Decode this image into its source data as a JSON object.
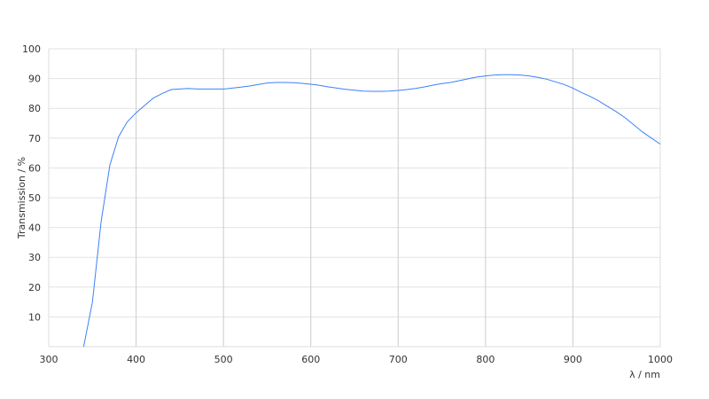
{
  "chart_data": {
    "type": "line",
    "title": "",
    "xlabel": "λ / nm",
    "ylabel": "Transmission / %",
    "xlim": [
      300,
      1000
    ],
    "ylim": [
      0,
      100
    ],
    "xticks": [
      300,
      400,
      500,
      600,
      700,
      800,
      900,
      1000
    ],
    "yticks": [
      10,
      20,
      30,
      40,
      50,
      60,
      70,
      80,
      90,
      100
    ],
    "grid": true,
    "line_color": "#3b82f6",
    "series": [
      {
        "x": [
          340,
          350,
          360,
          370,
          380,
          390,
          400,
          410,
          420,
          430,
          440,
          450,
          460,
          470,
          480,
          490,
          500,
          510,
          520,
          530,
          540,
          550,
          560,
          570,
          580,
          590,
          600,
          610,
          620,
          630,
          640,
          650,
          660,
          670,
          680,
          690,
          700,
          710,
          720,
          730,
          740,
          750,
          760,
          770,
          780,
          790,
          800,
          810,
          820,
          830,
          840,
          850,
          860,
          870,
          880,
          890,
          900,
          910,
          920,
          930,
          940,
          950,
          960,
          970,
          980,
          990,
          1000
        ],
        "y": [
          0,
          15,
          42,
          61,
          70.5,
          75.5,
          78.5,
          81,
          83.5,
          85,
          86.3,
          86.5,
          86.7,
          86.5,
          86.5,
          86.5,
          86.5,
          86.8,
          87.1,
          87.5,
          88,
          88.5,
          88.7,
          88.7,
          88.6,
          88.4,
          88.1,
          87.7,
          87.2,
          86.8,
          86.4,
          86.1,
          85.8,
          85.7,
          85.7,
          85.8,
          86,
          86.3,
          86.7,
          87.2,
          87.8,
          88.3,
          88.7,
          89.3,
          89.9,
          90.5,
          90.9,
          91.2,
          91.3,
          91.3,
          91.2,
          90.9,
          90.4,
          89.8,
          88.9,
          88,
          86.8,
          85.3,
          84,
          82.4,
          80.6,
          78.8,
          76.8,
          74.4,
          72,
          70,
          68
        ]
      }
    ]
  }
}
